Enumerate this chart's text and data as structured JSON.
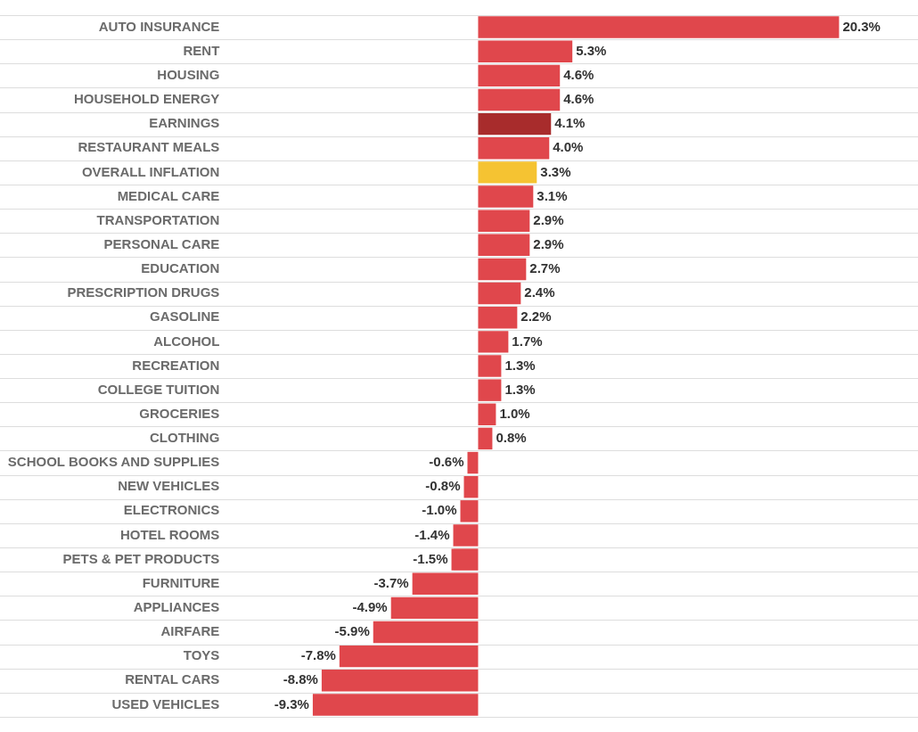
{
  "chart_data": {
    "type": "bar",
    "orientation": "horizontal",
    "grid": "y",
    "legend": false,
    "categories": [
      "AUTO INSURANCE",
      "RENT",
      "HOUSING",
      "HOUSEHOLD ENERGY",
      "EARNINGS",
      "RESTAURANT MEALS",
      "OVERALL INFLATION",
      "MEDICAL CARE",
      "TRANSPORTATION",
      "PERSONAL CARE",
      "EDUCATION",
      "PRESCRIPTION DRUGS",
      "GASOLINE",
      "ALCOHOL",
      "RECREATION",
      "COLLEGE TUITION",
      "GROCERIES",
      "CLOTHING",
      "SCHOOL BOOKS AND SUPPLIES",
      "NEW VEHICLES",
      "ELECTRONICS",
      "HOTEL ROOMS",
      "PETS & PET PRODUCTS",
      "FURNITURE",
      "APPLIANCES",
      "AIRFARE",
      "TOYS",
      "RENTAL CARS",
      "USED VEHICLES"
    ],
    "values": [
      20.3,
      5.3,
      4.6,
      4.6,
      4.1,
      4.0,
      3.3,
      3.1,
      2.9,
      2.9,
      2.7,
      2.4,
      2.2,
      1.7,
      1.3,
      1.3,
      1.0,
      0.8,
      -0.6,
      -0.8,
      -1.0,
      -1.4,
      -1.5,
      -3.7,
      -4.9,
      -5.9,
      -7.8,
      -8.8,
      -9.3
    ],
    "value_labels": [
      "20.3%",
      "5.3%",
      "4.6%",
      "4.6%",
      "4.1%",
      "4.0%",
      "3.3%",
      "3.1%",
      "2.9%",
      "2.9%",
      "2.7%",
      "2.4%",
      "2.2%",
      "1.7%",
      "1.3%",
      "1.3%",
      "1.0%",
      "0.8%",
      "-0.6%",
      "-0.8%",
      "-1.0%",
      "-1.4%",
      "-1.5%",
      "-3.7%",
      "-4.9%",
      "-5.9%",
      "-7.8%",
      "-8.8%",
      "-9.3%"
    ],
    "colors": [
      "#e0474c",
      "#e0474c",
      "#e0474c",
      "#e0474c",
      "#a82c2c",
      "#e0474c",
      "#f5c332",
      "#e0474c",
      "#e0474c",
      "#e0474c",
      "#e0474c",
      "#e0474c",
      "#e0474c",
      "#e0474c",
      "#e0474c",
      "#e0474c",
      "#e0474c",
      "#e0474c",
      "#e0474c",
      "#e0474c",
      "#e0474c",
      "#e0474c",
      "#e0474c",
      "#e0474c",
      "#e0474c",
      "#e0474c",
      "#e0474c",
      "#e0474c",
      "#e0474c"
    ]
  }
}
